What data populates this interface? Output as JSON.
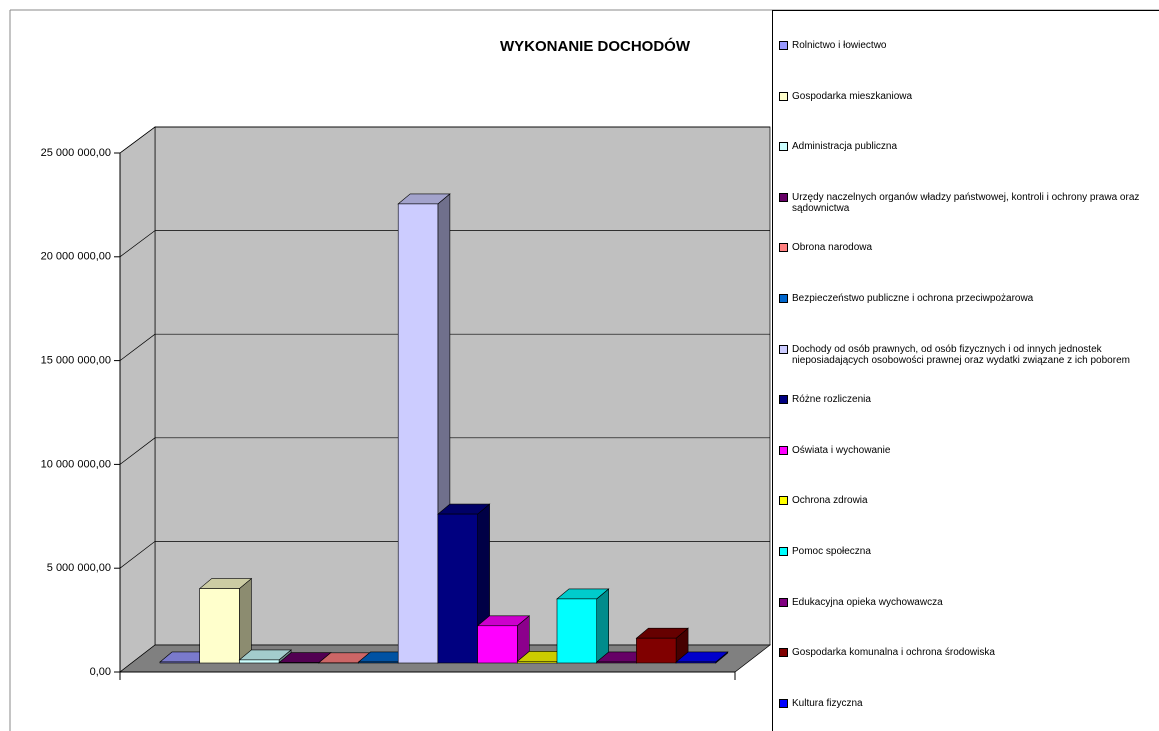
{
  "chart_data": {
    "type": "bar3d",
    "title": "WYKONANIE DOCHODÓW",
    "ylim": [
      0,
      25000000
    ],
    "yticks": [
      {
        "value": 0,
        "label": "0,00"
      },
      {
        "value": 5000000,
        "label": "5 000 000,00"
      },
      {
        "value": 10000000,
        "label": "10 000 000,00"
      },
      {
        "value": 15000000,
        "label": "15 000 000,00"
      },
      {
        "value": 20000000,
        "label": "20 000 000,00"
      },
      {
        "value": 25000000,
        "label": "25 000 000,00"
      }
    ],
    "grid": true,
    "legend": "right",
    "series": [
      {
        "name": "Rolnictwo i łowiectwo",
        "color": "#9999ff",
        "values": [
          50000
        ]
      },
      {
        "name": "Gospodarka mieszkaniowa",
        "color": "#ffffcc",
        "values": [
          3600000
        ]
      },
      {
        "name": "Administracja publiczna",
        "color": "#ccffff",
        "values": [
          150000
        ]
      },
      {
        "name": "Urzędy naczelnych organów władzy państwowej, kontroli i ochrony prawa oraz sądownictwa",
        "color": "#660066",
        "values": [
          20000
        ]
      },
      {
        "name": "Obrona narodowa",
        "color": "#ff8080",
        "values": [
          10000
        ]
      },
      {
        "name": "Bezpieczeństwo publiczne i ochrona przeciwpożarowa",
        "color": "#0066cc",
        "values": [
          50000
        ]
      },
      {
        "name": "Dochody od osób prawnych, od osób fizycznych i od innych jednostek nieposiadających osobowości prawnej oraz wydatki związane z ich poborem",
        "color": "#ccccff",
        "values": [
          22200000
        ]
      },
      {
        "name": "Różne rozliczenia",
        "color": "#000080",
        "values": [
          7200000
        ]
      },
      {
        "name": "Oświata i wychowanie",
        "color": "#ff00ff",
        "values": [
          1800000
        ]
      },
      {
        "name": "Ochrona zdrowia",
        "color": "#ffff00",
        "values": [
          80000
        ]
      },
      {
        "name": "Pomoc społeczna",
        "color": "#00ffff",
        "values": [
          3100000
        ]
      },
      {
        "name": "Edukacyjna opieka wychowawcza",
        "color": "#800080",
        "values": [
          50000
        ]
      },
      {
        "name": "Gospodarka komunalna i ochrona środowiska",
        "color": "#800000",
        "values": [
          1200000
        ]
      },
      {
        "name": "Kultura fizyczna",
        "color": "#0000ff",
        "values": [
          50000
        ]
      }
    ]
  }
}
